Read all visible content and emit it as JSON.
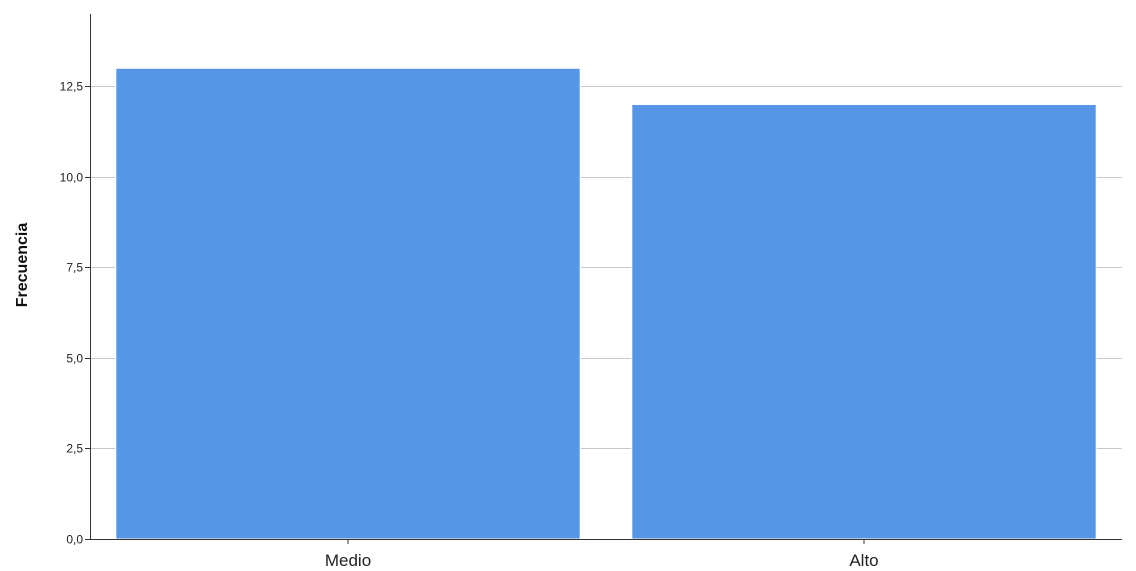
{
  "chart_data": {
    "type": "bar",
    "categories": [
      "Medio",
      "Alto"
    ],
    "values": [
      13,
      12
    ],
    "ylabel": "Frecuencia",
    "xlabel": "",
    "ylim": [
      0,
      14.5
    ],
    "yticks": [
      0,
      2.5,
      5,
      7.5,
      10,
      12.5
    ],
    "ytick_labels": [
      "0,0",
      "2,5",
      "5,0",
      "7,5",
      "10,0",
      "12,5"
    ],
    "grid": true,
    "colors": {
      "bar": "#5596e6",
      "bar_edge": "#ffffff",
      "grid": "#c8c8c8",
      "axis": "#333333"
    }
  }
}
